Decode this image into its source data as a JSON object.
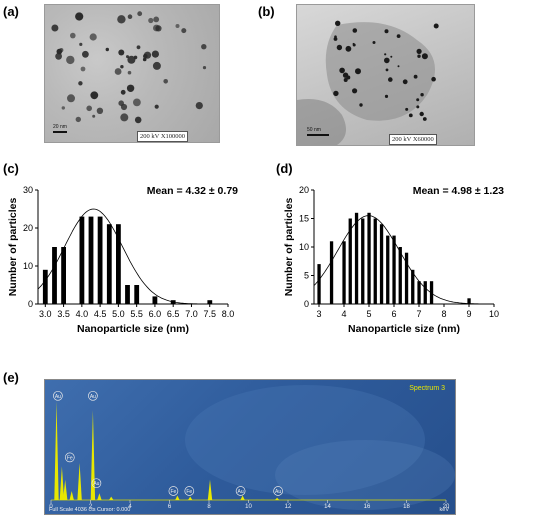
{
  "panels": {
    "a": {
      "label": "(a)",
      "caption": "200 kV X100000",
      "scale": "20 nm"
    },
    "b": {
      "label": "(b)",
      "caption": "200 kV X60000",
      "scale": "50 nm"
    },
    "c": {
      "label": "(c)"
    },
    "d": {
      "label": "(d)"
    },
    "e": {
      "label": "(e)"
    }
  },
  "chart_data": [
    {
      "id": "c",
      "type": "bar",
      "mean_label": "Mean = 4.32 ± 0.79",
      "xlabel": "Nanoparticle size (nm)",
      "ylabel": "Number of particles",
      "xlim": [
        2.8,
        8.0
      ],
      "ylim": [
        0,
        30
      ],
      "xticks": [
        "3.0",
        "3.5",
        "4.0",
        "4.5",
        "5.0",
        "5.5",
        "6.0",
        "6.5",
        "7.0",
        "7.5",
        "8.0"
      ],
      "yticks": [
        "0",
        "10",
        "20",
        "30"
      ],
      "x": [
        3.0,
        3.25,
        3.5,
        4.0,
        4.25,
        4.5,
        4.75,
        5.0,
        5.25,
        5.5,
        6.0,
        6.5,
        7.5
      ],
      "values": [
        9,
        15,
        15,
        23,
        23,
        23,
        21,
        21,
        5,
        5,
        2,
        1,
        1
      ],
      "fit_curve": {
        "mean": 4.32,
        "sd": 0.79,
        "peak": 25
      }
    },
    {
      "id": "d",
      "type": "bar",
      "mean_label": "Mean = 4.98 ± 1.23",
      "xlabel": "Nanoparticle size (nm)",
      "ylabel": "Number of particles",
      "xlim": [
        2.8,
        10
      ],
      "ylim": [
        0,
        20
      ],
      "xticks": [
        "3",
        "4",
        "5",
        "6",
        "7",
        "8",
        "9",
        "10"
      ],
      "yticks": [
        "0",
        "5",
        "10",
        "15",
        "20"
      ],
      "x": [
        3.0,
        3.5,
        4.0,
        4.25,
        4.5,
        4.75,
        5.0,
        5.25,
        5.5,
        5.75,
        6.0,
        6.25,
        6.5,
        6.75,
        7.0,
        7.25,
        7.5,
        9.0
      ],
      "values": [
        7,
        11,
        11,
        15,
        16,
        15,
        16,
        15,
        14,
        12,
        12,
        10,
        9,
        6,
        4,
        4,
        4,
        1
      ],
      "fit_curve": {
        "mean": 4.98,
        "sd": 1.23,
        "peak": 15.5
      }
    },
    {
      "id": "e",
      "type": "bar",
      "spectrum_label": "Spectrum 3",
      "footer_left": "Full Scale 4036 cts Cursor: 0.000",
      "footer_right": "keV",
      "xlim": [
        0,
        20
      ],
      "xticks": [
        "0",
        "2",
        "4",
        "6",
        "8",
        "10",
        "12",
        "14",
        "16",
        "18",
        "20"
      ],
      "peaks": [
        {
          "x": 0.28,
          "h": 0.88,
          "label": "Au"
        },
        {
          "x": 0.55,
          "h": 0.3,
          "label": ""
        },
        {
          "x": 0.72,
          "h": 0.18,
          "label": ""
        },
        {
          "x": 1.05,
          "h": 0.08,
          "label": ""
        },
        {
          "x": 2.12,
          "h": 0.8,
          "label": "Au"
        },
        {
          "x": 2.45,
          "h": 0.06,
          "label": "Au"
        },
        {
          "x": 1.45,
          "h": 0.33,
          "label": "Fe"
        },
        {
          "x": 3.05,
          "h": 0.03,
          "label": ""
        },
        {
          "x": 6.4,
          "h": 0.04,
          "label": "Fe"
        },
        {
          "x": 7.05,
          "h": 0.03,
          "label": "Fe"
        },
        {
          "x": 8.05,
          "h": 0.18,
          "label": ""
        },
        {
          "x": 9.7,
          "h": 0.04,
          "label": "Au"
        },
        {
          "x": 11.45,
          "h": 0.02,
          "label": "Au"
        }
      ],
      "tag_positions": [
        {
          "x": 0.35,
          "h": 0.93,
          "label": "Au"
        },
        {
          "x": 2.12,
          "h": 0.93,
          "label": "Au"
        },
        {
          "x": 0.95,
          "h": 0.38,
          "label": "Fe"
        },
        {
          "x": 2.3,
          "h": 0.15,
          "label": "Au"
        },
        {
          "x": 6.2,
          "h": 0.08,
          "label": "Fe"
        },
        {
          "x": 7.0,
          "h": 0.08,
          "label": "Fe"
        },
        {
          "x": 9.6,
          "h": 0.08,
          "label": "Au"
        },
        {
          "x": 11.5,
          "h": 0.08,
          "label": "Au"
        }
      ]
    }
  ],
  "colors": {
    "bar": "#000000",
    "eds_bg": "#2f5c9c",
    "eds_peak": "#e8e800",
    "eds_text": "#e8e800"
  }
}
